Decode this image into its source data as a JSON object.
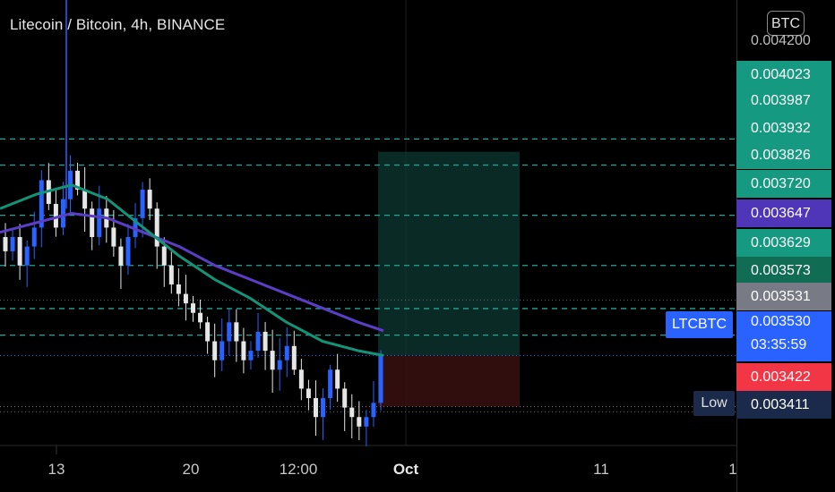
{
  "title": "Litecoin / Bitcoin, 4h, BINANCE",
  "currency_badge": "BTC",
  "top_price": "0.004200",
  "symbol_label": "LTCBTC",
  "last_price": "0.003530",
  "countdown": "03:35:59",
  "low_label": "Low",
  "x_axis": {
    "ticks": [
      "13",
      "20",
      "12:00",
      "Oct",
      "11",
      "1"
    ]
  },
  "price_tags": [
    {
      "value": "0.004023",
      "color": "#159980"
    },
    {
      "value": "0.003987",
      "color": "#159980"
    },
    {
      "value": "0.003932",
      "color": "#159980"
    },
    {
      "value": "0.003826",
      "color": "#159980"
    },
    {
      "value": "0.003720",
      "color": "#159980"
    },
    {
      "value": "0.003647",
      "color": "#4f36b8"
    },
    {
      "value": "0.003629",
      "color": "#159980"
    },
    {
      "value": "0.003573",
      "color": "#106c53"
    },
    {
      "value": "0.003531",
      "color": "#787b86"
    },
    {
      "value": "0.003422",
      "color": "#f23645"
    },
    {
      "value": "0.003411",
      "color": "#1b2a4a"
    }
  ],
  "chart_data": {
    "type": "candlestick",
    "title": "Litecoin / Bitcoin, 4h, BINANCE",
    "ylim": [
      0.00334,
      0.00422
    ],
    "horizontal_levels": [
      0.003987,
      0.003932,
      0.003826,
      0.00372,
      0.003629,
      0.003573
    ],
    "moving_averages": [
      {
        "color": "#5c3ec6",
        "last": 0.003647
      },
      {
        "color": "#139377",
        "last": 0.003573
      }
    ],
    "position_box": {
      "entry": 0.00353,
      "target": 0.00396,
      "stop": 0.003422
    },
    "close_series": [
      0.00375,
      0.00378,
      0.00372,
      0.00376,
      0.0038,
      0.0039,
      0.00385,
      0.0038,
      0.00386,
      0.00392,
      0.00388,
      0.00384,
      0.00378,
      0.00384,
      0.0038,
      0.00376,
      0.00372,
      0.00378,
      0.00382,
      0.00388,
      0.00384,
      0.00376,
      0.00372,
      0.00368,
      0.00366,
      0.00364,
      0.00362,
      0.0036,
      0.00356,
      0.00352,
      0.00356,
      0.0036,
      0.00356,
      0.00352,
      0.00354,
      0.00358,
      0.00354,
      0.0035,
      0.00352,
      0.00355,
      0.0035,
      0.00346,
      0.00344,
      0.0034,
      0.00344,
      0.0035,
      0.00346,
      0.00342,
      0.0034,
      0.00338,
      0.0034,
      0.00343,
      0.00353
    ]
  }
}
